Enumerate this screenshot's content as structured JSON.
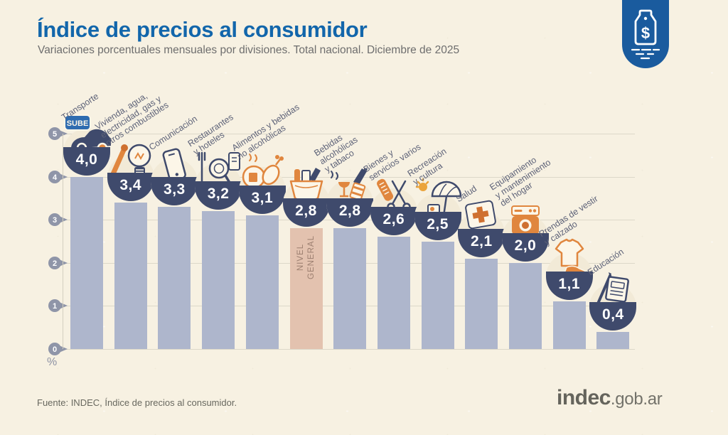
{
  "header": {
    "title": "Índice de precios al consumidor",
    "subtitle": "Variaciones porcentuales mensuales por divisiones. Total nacional. Diciembre de 2025"
  },
  "badge": {
    "icon": "price-tag-icon",
    "symbol": "$"
  },
  "chart_data": {
    "type": "bar",
    "title": "Índice de precios al consumidor",
    "subtitle": "Variaciones porcentuales mensuales por divisiones. Total nacional. Diciembre de 2025",
    "ylabel": "%",
    "ylim": [
      0,
      5
    ],
    "yticks": [
      0,
      1,
      2,
      3,
      4,
      5
    ],
    "grid": true,
    "highlighted_category": "NIVEL GENERAL",
    "categories": [
      "Transporte",
      "Vivienda, agua, electricidad, gas y otros combustibles",
      "Comunicación",
      "Restaurantes y hoteles",
      "Alimentos y bebidas no alcohólicas",
      "Nivel general",
      "Bebidas alcohólicas y tabaco",
      "Bienes y servicios varios",
      "Recreación y cultura",
      "Salud",
      "Equipamiento y mantenimiento del hogar",
      "Prendas de vestir y calzado",
      "Educación"
    ],
    "values": [
      4.0,
      3.4,
      3.3,
      3.2,
      3.1,
      2.8,
      2.8,
      2.6,
      2.5,
      2.1,
      2.0,
      1.1,
      0.4
    ],
    "bars": [
      {
        "id": "transporte",
        "label_lines": [
          "Transporte"
        ],
        "value": 4.0,
        "value_label": "4,0",
        "icon": "transport-car-sube-icon",
        "highlight": false
      },
      {
        "id": "vivienda",
        "label_lines": [
          "Vivienda, agua,",
          "electricidad, gas y",
          "otros combustibles"
        ],
        "value": 3.4,
        "value_label": "3,4",
        "icon": "housing-utilities-icon",
        "highlight": false
      },
      {
        "id": "comunicacion",
        "label_lines": [
          "Comunicación"
        ],
        "value": 3.3,
        "value_label": "3,3",
        "icon": "communication-phone-icon",
        "highlight": false
      },
      {
        "id": "restaurantes-hoteles",
        "label_lines": [
          "Restaurantes",
          "y hoteles"
        ],
        "value": 3.2,
        "value_label": "3,2",
        "icon": "restaurants-hotels-icon",
        "highlight": false
      },
      {
        "id": "alimentos",
        "label_lines": [
          "Alimentos y bebidas",
          "no alcohólicas"
        ],
        "value": 3.1,
        "value_label": "3,1",
        "icon": "food-beverages-icon",
        "highlight": false
      },
      {
        "id": "nivel-general",
        "label_lines": [],
        "bar_text_lines": [
          "NIVEL",
          "GENERAL"
        ],
        "value": 2.8,
        "value_label": "2,8",
        "icon": "general-level-basket-icon",
        "highlight": true
      },
      {
        "id": "bebidas-alcoholicas-tabaco",
        "label_lines": [
          "Bebidas",
          "alcohólicas",
          "y tabaco"
        ],
        "value": 2.8,
        "value_label": "2,8",
        "icon": "alcohol-tobacco-icon",
        "highlight": false
      },
      {
        "id": "bienes-servicios-varios",
        "label_lines": [
          "Bienes y",
          "servicios varios"
        ],
        "value": 2.6,
        "value_label": "2,6",
        "icon": "goods-services-icon",
        "highlight": false
      },
      {
        "id": "recreacion-cultura",
        "label_lines": [
          "Recreación",
          "y cultura"
        ],
        "value": 2.5,
        "value_label": "2,5",
        "icon": "recreation-culture-icon",
        "highlight": false
      },
      {
        "id": "salud",
        "label_lines": [
          "Salud"
        ],
        "value": 2.1,
        "value_label": "2,1",
        "icon": "health-cross-icon",
        "highlight": false
      },
      {
        "id": "equipamiento-hogar",
        "label_lines": [
          "Equipamiento",
          "y mantenimiento",
          "del hogar"
        ],
        "value": 2.0,
        "value_label": "2,0",
        "icon": "home-equipment-icon",
        "highlight": false
      },
      {
        "id": "prendas-vestir-calzado",
        "label_lines": [
          "Prendas de vestir",
          "y calzado"
        ],
        "value": 1.1,
        "value_label": "1,1",
        "icon": "clothing-footwear-icon",
        "highlight": false
      },
      {
        "id": "educacion",
        "label_lines": [
          "Educación"
        ],
        "value": 0.4,
        "value_label": "0,4",
        "icon": "education-icon",
        "highlight": false
      }
    ]
  },
  "footer": {
    "source": "Fuente: INDEC, Índice de precios al consumidor.",
    "logo": {
      "brand": "indec",
      "domain": ".gob.ar"
    }
  },
  "colors": {
    "background": "#f7f1e2",
    "title_blue": "#1266ab",
    "bar": "#aeb6cc",
    "highlight_bar": "#e3c2af",
    "value_bowl_navy": "#3f4a6c",
    "accent_orange": "#e0863e",
    "badge_blue": "#1a5b9e",
    "tick_gray": "#8f95a8",
    "gridline": "#dcd8c9"
  }
}
